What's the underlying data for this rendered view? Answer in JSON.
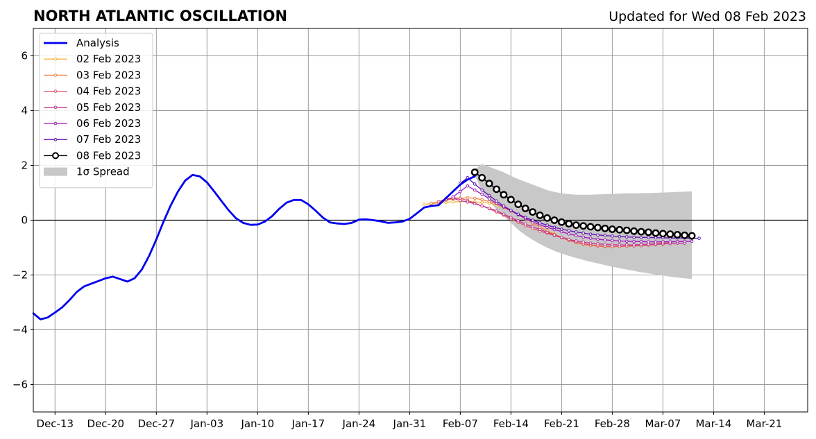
{
  "chart_data": {
    "type": "line",
    "title": "NORTH ATLANTIC OSCILLATION",
    "updated": "Updated for Wed 08 Feb 2023",
    "xlabel": "",
    "ylabel": "",
    "ylim": [
      -7,
      7
    ],
    "yticks": [
      -6,
      -4,
      -2,
      0,
      2,
      4,
      6
    ],
    "ytick_labels": [
      "−6",
      "−4",
      "−2",
      "0",
      "2",
      "4",
      "6"
    ],
    "xlim": [
      "2022-12-10",
      "2023-03-27"
    ],
    "xticks": [
      {
        "date": "2022-12-13",
        "label": "Dec-13"
      },
      {
        "date": "2022-12-20",
        "label": "Dec-20"
      },
      {
        "date": "2022-12-27",
        "label": "Dec-27"
      },
      {
        "date": "2023-01-03",
        "label": "Jan-03"
      },
      {
        "date": "2023-01-10",
        "label": "Jan-10"
      },
      {
        "date": "2023-01-17",
        "label": "Jan-17"
      },
      {
        "date": "2023-01-24",
        "label": "Jan-24"
      },
      {
        "date": "2023-01-31",
        "label": "Jan-31"
      },
      {
        "date": "2023-02-07",
        "label": "Feb-07"
      },
      {
        "date": "2023-02-14",
        "label": "Feb-14"
      },
      {
        "date": "2023-02-21",
        "label": "Feb-21"
      },
      {
        "date": "2023-02-28",
        "label": "Feb-28"
      },
      {
        "date": "2023-03-07",
        "label": "Mar-07"
      },
      {
        "date": "2023-03-14",
        "label": "Mar-14"
      },
      {
        "date": "2023-03-21",
        "label": "Mar-21"
      }
    ],
    "grid": true,
    "legend_position": "top-left",
    "analysis": {
      "name": "Analysis",
      "color": "#0000ee",
      "start": "2022-12-10",
      "values": [
        -3.4,
        -3.62,
        -3.55,
        -3.37,
        -3.18,
        -2.92,
        -2.62,
        -2.42,
        -2.32,
        -2.22,
        -2.12,
        -2.06,
        -2.15,
        -2.24,
        -2.12,
        -1.8,
        -1.3,
        -0.7,
        -0.05,
        0.55,
        1.05,
        1.45,
        1.65,
        1.6,
        1.38,
        1.05,
        0.7,
        0.36,
        0.07,
        -0.1,
        -0.17,
        -0.16,
        -0.05,
        0.15,
        0.42,
        0.64,
        0.74,
        0.74,
        0.58,
        0.35,
        0.1,
        -0.08,
        -0.12,
        -0.14,
        -0.1,
        0.02,
        0.03,
        0.0,
        -0.04,
        -0.1,
        -0.08,
        -0.05,
        0.05,
        0.25,
        0.46,
        0.52,
        0.55,
        0.8,
        1.05,
        1.3,
        1.48,
        1.6
      ]
    },
    "forecasts": [
      {
        "name": "02 Feb 2023",
        "color": "#f5b341",
        "start": "2023-02-02",
        "values": [
          0.58,
          0.6,
          0.63,
          0.65,
          0.67,
          0.68,
          0.68,
          0.67,
          0.65,
          0.62,
          0.55,
          0.45,
          0.33,
          0.2,
          0.05,
          -0.1,
          -0.25,
          -0.38,
          -0.5,
          -0.62,
          -0.72,
          -0.8,
          -0.85,
          -0.9,
          -0.92,
          -0.95,
          -0.96,
          -0.96,
          -0.95,
          -0.93,
          -0.9,
          -0.88,
          -0.86,
          -0.84,
          -0.82
        ]
      },
      {
        "name": "03 Feb 2023",
        "color": "#ef8040",
        "start": "2023-02-03",
        "values": [
          0.62,
          0.66,
          0.72,
          0.78,
          0.8,
          0.82,
          0.8,
          0.75,
          0.68,
          0.6,
          0.48,
          0.35,
          0.2,
          0.05,
          -0.1,
          -0.25,
          -0.4,
          -0.52,
          -0.64,
          -0.74,
          -0.82,
          -0.88,
          -0.92,
          -0.95,
          -0.97,
          -0.97,
          -0.96,
          -0.94,
          -0.92,
          -0.89,
          -0.87,
          -0.85,
          -0.83,
          -0.82
        ]
      },
      {
        "name": "04 Feb 2023",
        "color": "#de5565",
        "start": "2023-02-04",
        "values": [
          0.68,
          0.78,
          0.82,
          0.8,
          0.72,
          0.62,
          0.52,
          0.42,
          0.3,
          0.18,
          0.05,
          -0.08,
          -0.2,
          -0.3,
          -0.4,
          -0.48,
          -0.56,
          -0.64,
          -0.72,
          -0.8,
          -0.86,
          -0.9,
          -0.93,
          -0.95,
          -0.96,
          -0.96,
          -0.95,
          -0.94,
          -0.93,
          -0.91,
          -0.89,
          -0.87,
          -0.85,
          -0.84
        ]
      },
      {
        "name": "05 Feb 2023",
        "color": "#c03590",
        "start": "2023-02-05",
        "values": [
          0.75,
          0.8,
          0.72,
          0.66,
          0.6,
          0.52,
          0.44,
          0.34,
          0.22,
          0.1,
          -0.02,
          -0.14,
          -0.24,
          -0.34,
          -0.44,
          -0.54,
          -0.62,
          -0.7,
          -0.76,
          -0.8,
          -0.84,
          -0.86,
          -0.88,
          -0.89,
          -0.9,
          -0.9,
          -0.9,
          -0.89,
          -0.88,
          -0.87,
          -0.86,
          -0.85,
          -0.84,
          -0.84
        ]
      },
      {
        "name": "06 Feb 2023",
        "color": "#9a1ab8",
        "start": "2023-02-06",
        "values": [
          0.85,
          1.05,
          1.25,
          1.1,
          0.95,
          0.78,
          0.62,
          0.48,
          0.34,
          0.2,
          0.06,
          -0.06,
          -0.17,
          -0.26,
          -0.34,
          -0.42,
          -0.5,
          -0.56,
          -0.62,
          -0.66,
          -0.7,
          -0.72,
          -0.74,
          -0.76,
          -0.77,
          -0.78,
          -0.78,
          -0.79,
          -0.79,
          -0.79,
          -0.79,
          -0.78,
          -0.78,
          -0.77
        ]
      },
      {
        "name": "07 Feb 2023",
        "color": "#5e0fb0",
        "start": "2023-02-07",
        "values": [
          1.35,
          1.55,
          1.32,
          1.1,
          0.9,
          0.7,
          0.52,
          0.36,
          0.22,
          0.1,
          0.0,
          -0.1,
          -0.18,
          -0.26,
          -0.33,
          -0.38,
          -0.43,
          -0.47,
          -0.51,
          -0.54,
          -0.56,
          -0.58,
          -0.6,
          -0.61,
          -0.62,
          -0.63,
          -0.63,
          -0.64,
          -0.64,
          -0.65,
          -0.65,
          -0.65,
          -0.66,
          -0.66
        ]
      },
      {
        "name": "08 Feb 2023",
        "color": "#000000",
        "start": "2023-02-09",
        "values": [
          1.75,
          1.55,
          1.34,
          1.13,
          0.93,
          0.75,
          0.58,
          0.43,
          0.3,
          0.18,
          0.08,
          0.0,
          -0.07,
          -0.13,
          -0.18,
          -0.21,
          -0.24,
          -0.27,
          -0.3,
          -0.33,
          -0.35,
          -0.37,
          -0.4,
          -0.42,
          -0.44,
          -0.47,
          -0.49,
          -0.51,
          -0.53,
          -0.55,
          -0.57
        ]
      }
    ],
    "spread": {
      "name": "1σ Spread",
      "color": "#c8c8c8",
      "start": "2023-02-09",
      "upper": [
        1.85,
        2.05,
        1.95,
        1.85,
        1.75,
        1.62,
        1.5,
        1.4,
        1.3,
        1.2,
        1.1,
        1.03,
        0.98,
        0.95,
        0.93,
        0.93,
        0.93,
        0.94,
        0.95,
        0.96,
        0.97,
        0.98,
        0.98,
        0.99,
        0.99,
        1.0,
        1.01,
        1.02,
        1.03,
        1.04,
        1.05
      ],
      "lower": [
        1.65,
        1.05,
        0.7,
        0.4,
        0.15,
        -0.1,
        -0.35,
        -0.55,
        -0.72,
        -0.87,
        -1.0,
        -1.12,
        -1.22,
        -1.3,
        -1.38,
        -1.45,
        -1.52,
        -1.58,
        -1.64,
        -1.7,
        -1.75,
        -1.8,
        -1.85,
        -1.9,
        -1.94,
        -1.98,
        -2.02,
        -2.06,
        -2.09,
        -2.12,
        -2.15
      ]
    }
  }
}
